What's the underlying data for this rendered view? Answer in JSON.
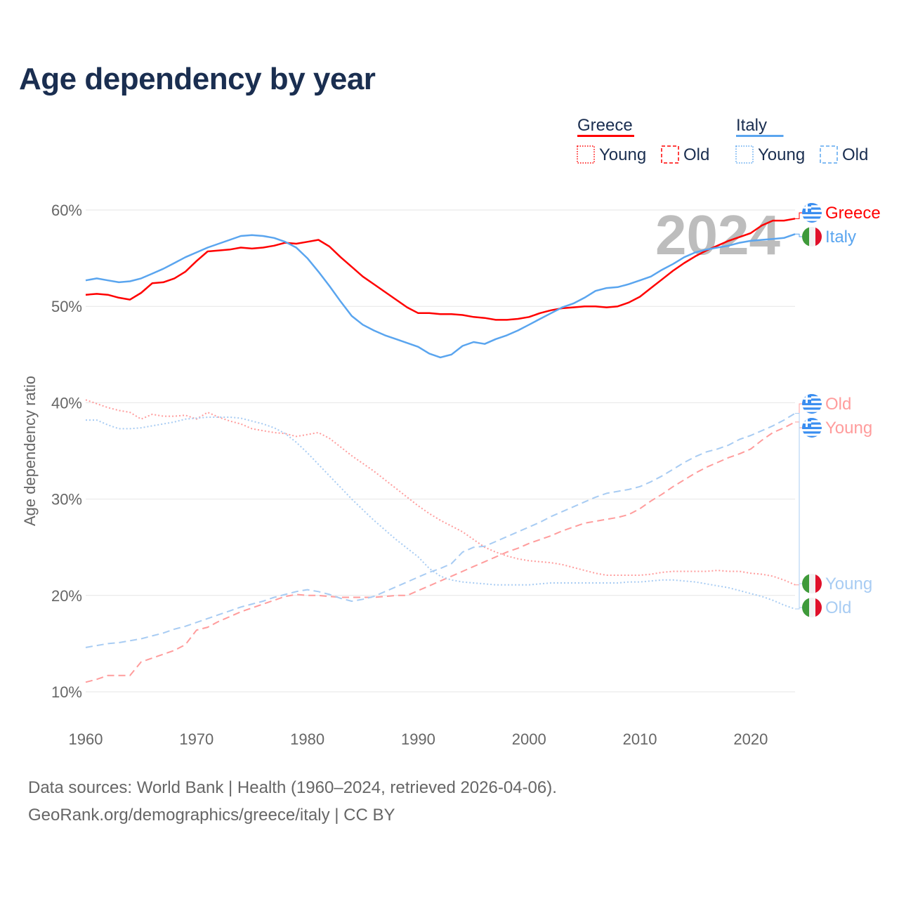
{
  "title": "Age dependency by year",
  "legend": {
    "groups": [
      {
        "name": "Greece",
        "color": "#ff0000",
        "light": "#ff9c9c",
        "items": [
          "Young",
          "Old"
        ]
      },
      {
        "name": "Italy",
        "color": "#5aa5ef",
        "light": "#a8ccf3",
        "items": [
          "Young",
          "Old"
        ]
      }
    ]
  },
  "year_watermark": "2024",
  "footer": {
    "line1": "Data sources: World Bank | Health (1960–2024, retrieved 2026-04-06).",
    "line2": "GeoRank.org/demographics/greece/italy | CC BY"
  },
  "chart_data": {
    "type": "line",
    "title": "Age dependency by year",
    "xlabel": "",
    "ylabel": "Age dependency ratio",
    "xlim": [
      1960,
      2024
    ],
    "ylim": [
      10,
      60
    ],
    "xticks": [
      "1960",
      "1970",
      "1980",
      "1990",
      "2000",
      "2010",
      "2020"
    ],
    "yticks": [
      "10%",
      "20%",
      "30%",
      "40%",
      "50%",
      "60%"
    ],
    "grid": true,
    "legend_position": "top-right",
    "x_start": 1960,
    "series": [
      {
        "name": "Greece",
        "end_label": "Greece",
        "flag": "greece",
        "style": "solid",
        "color": "#ff0000",
        "values": [
          51.2,
          51.3,
          51.2,
          50.9,
          50.7,
          51.4,
          52.4,
          52.5,
          52.9,
          53.6,
          54.7,
          55.7,
          55.8,
          55.9,
          56.1,
          56.0,
          56.1,
          56.3,
          56.6,
          56.5,
          56.7,
          56.9,
          56.2,
          55.1,
          54.1,
          53.1,
          52.3,
          51.5,
          50.7,
          49.9,
          49.3,
          49.3,
          49.2,
          49.2,
          49.1,
          48.9,
          48.8,
          48.6,
          48.6,
          48.7,
          48.9,
          49.3,
          49.6,
          49.8,
          49.9,
          50.0,
          50.0,
          49.9,
          50.0,
          50.4,
          51.0,
          51.9,
          52.8,
          53.7,
          54.5,
          55.2,
          55.8,
          56.3,
          56.8,
          57.2,
          57.6,
          58.4,
          58.9,
          58.9,
          59.1
        ]
      },
      {
        "name": "Italy",
        "end_label": "Italy",
        "flag": "italy",
        "style": "solid",
        "color": "#5aa5ef",
        "values": [
          52.7,
          52.9,
          52.7,
          52.5,
          52.6,
          52.9,
          53.4,
          53.9,
          54.5,
          55.1,
          55.6,
          56.1,
          56.5,
          56.9,
          57.3,
          57.4,
          57.3,
          57.1,
          56.7,
          56.1,
          55.0,
          53.6,
          52.1,
          50.5,
          49.0,
          48.1,
          47.5,
          47.0,
          46.6,
          46.2,
          45.8,
          45.1,
          44.7,
          45.0,
          45.9,
          46.3,
          46.1,
          46.6,
          47.0,
          47.5,
          48.1,
          48.7,
          49.3,
          49.9,
          50.3,
          50.9,
          51.6,
          51.9,
          52.0,
          52.3,
          52.7,
          53.1,
          53.8,
          54.4,
          55.1,
          55.6,
          55.9,
          56.1,
          56.3,
          56.6,
          56.8,
          56.9,
          57.0,
          57.1,
          57.5
        ]
      },
      {
        "name": "Greece Young",
        "end_label": "Young",
        "flag": "greece",
        "style": "dotted",
        "color": "#ff9c9c",
        "values": [
          40.3,
          39.9,
          39.5,
          39.2,
          39.0,
          38.3,
          38.8,
          38.6,
          38.6,
          38.7,
          38.3,
          39.0,
          38.5,
          38.1,
          37.8,
          37.3,
          37.1,
          36.9,
          36.8,
          36.5,
          36.7,
          36.9,
          36.3,
          35.4,
          34.5,
          33.7,
          32.9,
          32.0,
          31.1,
          30.2,
          29.3,
          28.5,
          27.8,
          27.2,
          26.6,
          25.8,
          25.0,
          24.5,
          24.1,
          23.8,
          23.6,
          23.5,
          23.4,
          23.2,
          22.9,
          22.6,
          22.3,
          22.1,
          22.1,
          22.1,
          22.1,
          22.2,
          22.4,
          22.5,
          22.5,
          22.5,
          22.5,
          22.6,
          22.5,
          22.5,
          22.3,
          22.2,
          22.0,
          21.6,
          21.1
        ]
      },
      {
        "name": "Greece Old",
        "end_label": "Old",
        "flag": "greece",
        "style": "dashed",
        "color": "#ff9c9c",
        "values": [
          11.0,
          11.3,
          11.7,
          11.7,
          11.7,
          13.1,
          13.5,
          13.9,
          14.3,
          14.9,
          16.4,
          16.7,
          17.3,
          17.8,
          18.3,
          18.7,
          19.1,
          19.5,
          19.9,
          20.1,
          20.0,
          20.0,
          19.9,
          19.8,
          19.8,
          19.8,
          19.8,
          19.9,
          20.0,
          20.0,
          20.5,
          21.0,
          21.5,
          22.0,
          22.5,
          23.0,
          23.5,
          24.0,
          24.5,
          24.9,
          25.4,
          25.8,
          26.2,
          26.7,
          27.1,
          27.5,
          27.7,
          27.9,
          28.1,
          28.4,
          29.0,
          29.8,
          30.5,
          31.3,
          32.0,
          32.7,
          33.3,
          33.8,
          34.3,
          34.7,
          35.2,
          36.1,
          36.9,
          37.4,
          38.0
        ]
      },
      {
        "name": "Italy Young",
        "end_label": "Young",
        "flag": "italy",
        "style": "dotted",
        "color": "#a8ccf3",
        "values": [
          38.2,
          38.2,
          37.7,
          37.3,
          37.3,
          37.4,
          37.6,
          37.8,
          38.0,
          38.3,
          38.4,
          38.5,
          38.5,
          38.5,
          38.4,
          38.1,
          37.8,
          37.4,
          36.8,
          35.9,
          34.8,
          33.6,
          32.4,
          31.2,
          30.0,
          28.9,
          27.8,
          26.8,
          25.8,
          24.9,
          24.0,
          22.8,
          22.0,
          21.6,
          21.4,
          21.3,
          21.2,
          21.1,
          21.1,
          21.1,
          21.1,
          21.2,
          21.3,
          21.3,
          21.3,
          21.3,
          21.3,
          21.3,
          21.3,
          21.4,
          21.4,
          21.5,
          21.6,
          21.6,
          21.5,
          21.4,
          21.2,
          21.0,
          20.8,
          20.5,
          20.2,
          19.9,
          19.5,
          19.0,
          18.6
        ]
      },
      {
        "name": "Italy Old",
        "end_label": "Old",
        "flag": "italy",
        "style": "dashed",
        "color": "#a8ccf3",
        "values": [
          14.6,
          14.8,
          15.0,
          15.1,
          15.3,
          15.5,
          15.8,
          16.1,
          16.5,
          16.8,
          17.2,
          17.6,
          18.0,
          18.4,
          18.8,
          19.1,
          19.4,
          19.8,
          20.1,
          20.4,
          20.6,
          20.4,
          20.1,
          19.7,
          19.4,
          19.6,
          19.9,
          20.4,
          20.9,
          21.4,
          21.9,
          22.4,
          22.8,
          23.3,
          24.5,
          25.0,
          25.1,
          25.6,
          26.1,
          26.6,
          27.1,
          27.6,
          28.2,
          28.7,
          29.2,
          29.7,
          30.2,
          30.6,
          30.8,
          31.0,
          31.3,
          31.8,
          32.4,
          33.1,
          33.8,
          34.4,
          34.9,
          35.2,
          35.6,
          36.2,
          36.6,
          37.1,
          37.6,
          38.2,
          38.9
        ]
      }
    ]
  }
}
